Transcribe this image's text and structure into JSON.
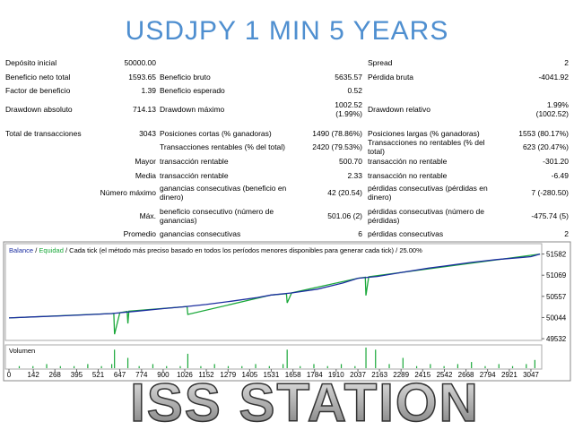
{
  "header": {
    "title": "USDJPY 1 MIN 5 YEARS"
  },
  "report": {
    "rows": [
      [
        "Depósito inicial",
        "50000.00",
        "Spread",
        "2"
      ],
      [
        "Beneficio neto total",
        "1593.65",
        "Beneficio bruto",
        "5635.57",
        "Pérdida bruta",
        "-4041.92"
      ],
      [
        "Factor de beneficio",
        "1.39",
        "Beneficio esperado",
        "0.52"
      ],
      [
        "Drawdown absoluto",
        "714.13",
        "Drawdown máximo",
        "1002.52\n(1.99%)",
        "Drawdown relativo",
        "1.99%\n(1002.52)"
      ],
      [
        "Total de transacciones",
        "3043",
        "Posiciones cortas (% ganadoras)",
        "1490 (78.86%)",
        "Posiciones largas (% ganadoras)",
        "1553 (80.17%)"
      ],
      [
        "Transacciones rentables (% del total)",
        "2420 (79.53%)",
        "Transacciones no rentables (% del total)",
        "623 (20.47%)"
      ],
      [
        "Mayor",
        "transacción rentable",
        "500.70",
        "transacción no rentable",
        "-301.20"
      ],
      [
        "Media",
        "transacción rentable",
        "2.33",
        "transacción no rentable",
        "-6.49"
      ],
      [
        "Número máximo",
        "ganancias consecutivas (beneficio en dinero)",
        "42 (20.54)",
        "pérdidas consecutivas (pérdidas en dinero)",
        "7 (-280.50)"
      ],
      [
        "Máx.",
        "beneficio consecutivo (número de ganancias)",
        "501.06 (2)",
        "pérdidas consecutivas (número de pérdidas)",
        "-475.74 (5)"
      ],
      [
        "Promedio",
        "ganancias consecutivas",
        "6",
        "pérdidas consecutivas",
        "2"
      ]
    ]
  },
  "chart_data": {
    "type": "line",
    "legend_separator": " / ",
    "model": "Cada tick (el método más preciso basado en todos los períodos menores disponibles para generar cada tick)",
    "quality": "25.00%",
    "xlim": [
      -21,
      3110
    ],
    "ylim": [
      49490,
      51833
    ],
    "xticks": [
      0,
      142,
      268,
      395,
      521,
      647,
      774,
      900,
      1026,
      1152,
      1279,
      1405,
      1531,
      1658,
      1784,
      1910,
      2037,
      2163,
      2289,
      2415,
      2542,
      2668,
      2794,
      2921,
      3047
    ],
    "yticks": [
      51582,
      51069,
      50557,
      50044,
      49532
    ],
    "series": [
      {
        "name": "Balance",
        "color": "#1c2ea0",
        "x": [
          0,
          150,
          300,
          450,
          600,
          647,
          750,
          900,
          1026,
          1150,
          1300,
          1450,
          1531,
          1650,
          1800,
          1950,
          2037,
          2150,
          2300,
          2450,
          2542,
          2700,
          2850,
          3000,
          3047,
          3100
        ],
        "values": [
          50034,
          50060,
          50085,
          50110,
          50140,
          50160,
          50200,
          50260,
          50306,
          50360,
          50440,
          50530,
          50590,
          50640,
          50730,
          50880,
          50996,
          51040,
          51140,
          51240,
          51290,
          51380,
          51450,
          51500,
          51519,
          51582
        ]
      },
      {
        "name": "Equidad",
        "color": "#1aa83a",
        "x": [
          0,
          600,
          612,
          616,
          647,
          690,
          694,
          700,
          1026,
          1040,
          1044,
          1531,
          1620,
          1624,
          1650,
          2037,
          2080,
          2084,
          2100,
          3100
        ],
        "values": [
          50034,
          50140,
          50140,
          49640,
          50160,
          50190,
          49900,
          50200,
          50306,
          50310,
          50120,
          50590,
          50620,
          50400,
          50640,
          50996,
          51020,
          50580,
          51030,
          51582
        ]
      }
    ],
    "volume": {
      "name": "Volumen",
      "color": "#1aa83a",
      "ylim": [
        0,
        10
      ],
      "x": [
        60,
        140,
        220,
        300,
        380,
        460,
        540,
        600,
        616,
        694,
        760,
        840,
        920,
        1000,
        1044,
        1120,
        1200,
        1280,
        1360,
        1440,
        1520,
        1600,
        1624,
        1700,
        1780,
        1860,
        1940,
        2020,
        2084,
        2140,
        2220,
        2300,
        2380,
        2460,
        2540,
        2620,
        2700,
        2780,
        2860,
        2940,
        3020,
        3070
      ],
      "values": [
        1,
        1,
        2,
        1,
        1,
        2,
        1,
        2,
        9,
        5,
        1,
        2,
        1,
        1,
        7,
        1,
        2,
        1,
        1,
        2,
        1,
        2,
        9,
        1,
        2,
        1,
        2,
        1,
        10,
        9,
        2,
        5,
        1,
        2,
        1,
        2,
        3,
        1,
        2,
        1,
        2,
        4
      ]
    }
  },
  "footer": {
    "title": "ISS STATION"
  }
}
